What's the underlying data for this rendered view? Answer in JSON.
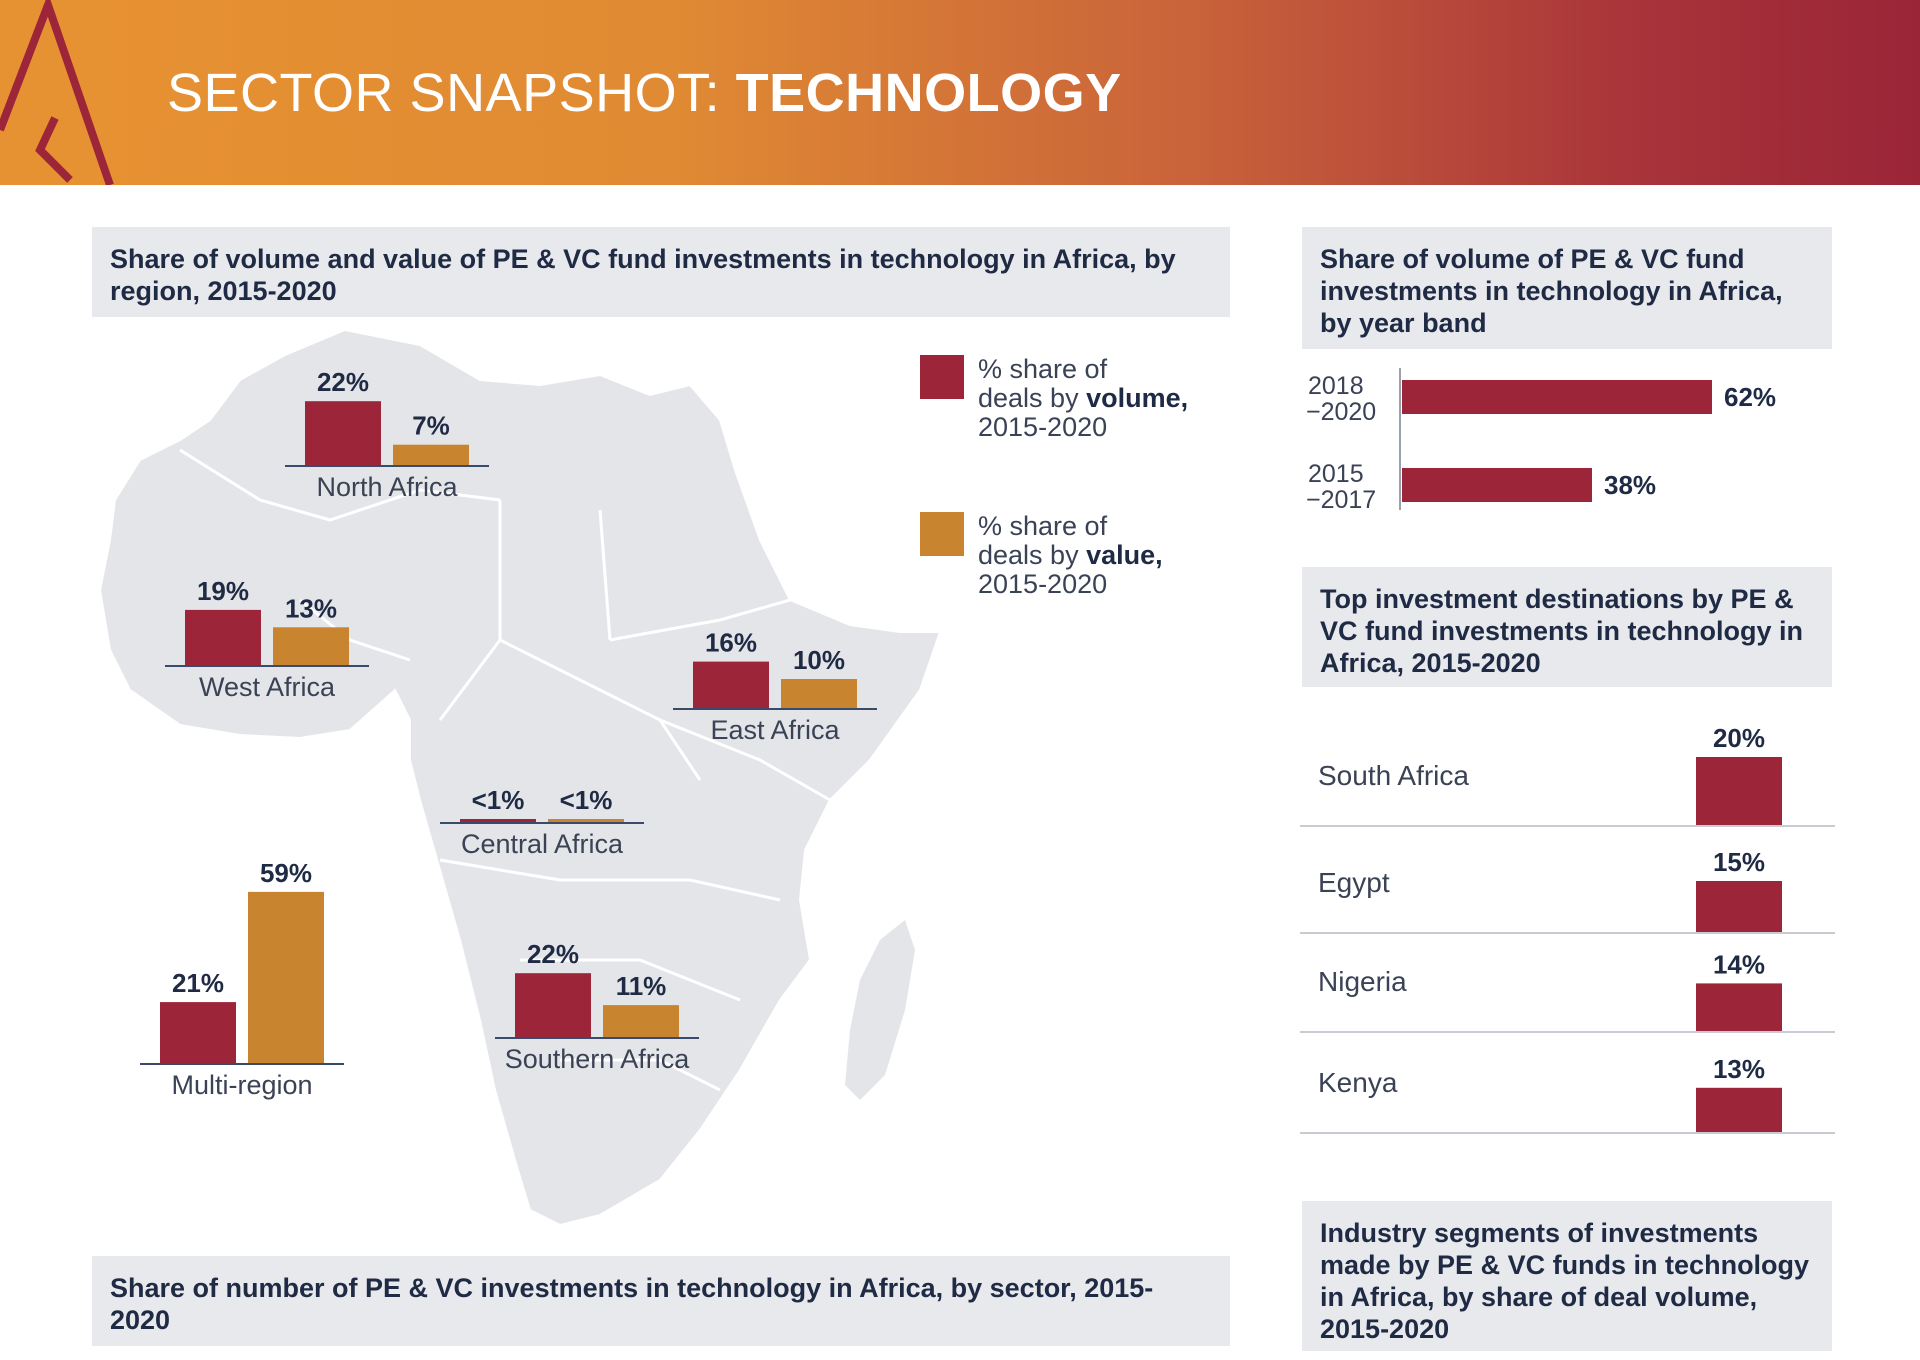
{
  "header": {
    "title_light": "SECTOR SNAPSHOT: ",
    "title_bold": "TECHNOLOGY"
  },
  "colors": {
    "volume": "#9c2539",
    "value": "#c9842f",
    "map": "#e4e5e8",
    "panel": "#e8e9ec"
  },
  "panels": {
    "region_title": "Share of volume and value of PE & VC fund investments in technology in Africa, by region, 2015-2020",
    "yearband_title": "Share of volume of  PE & VC fund investments  in technology  in Africa, by year band",
    "destinations_title": "Top investment destinations by PE & VC fund investments in technology in Africa, 2015-2020",
    "sector_title": "Share of number of PE & VC investments in technology in Africa, by sector, 2015-2020",
    "segments_title": "Industry segments of investments made by PE & VC funds in technology in Africa, by share of deal volume, 2015-2020"
  },
  "legend": {
    "volume": {
      "line1": "% share of",
      "line2_pre": "deals by ",
      "line2_bold": "volume,",
      "line3": "2015-2020"
    },
    "value": {
      "line1": "% share of",
      "line2_pre": "deals by ",
      "line2_bold": "value,",
      "line3": "2015-2020"
    }
  },
  "chart_data": [
    {
      "type": "bar",
      "title": "Share of volume and value of PE & VC fund investments in technology in Africa, by region, 2015-2020",
      "categories": [
        "North Africa",
        "West Africa",
        "East Africa",
        "Central Africa",
        "Southern Africa",
        "Multi-region"
      ],
      "series": [
        {
          "name": "% share of deals by volume, 2015-2020",
          "values": [
            22,
            19,
            16,
            0.5,
            22,
            21
          ],
          "labels": [
            "22%",
            "19%",
            "16%",
            "<1%",
            "22%",
            "21%"
          ]
        },
        {
          "name": "% share of deals by value, 2015-2020",
          "values": [
            7,
            13,
            10,
            0.5,
            11,
            59
          ],
          "labels": [
            "7%",
            "13%",
            "10%",
            "<1%",
            "11%",
            "59%"
          ]
        }
      ],
      "legend": "top-right",
      "grid": false
    },
    {
      "type": "bar",
      "title": "Share of volume of  PE & VC fund investments  in technology  in Africa, by year band",
      "orientation": "horizontal",
      "categories": [
        [
          "2018",
          "−2020"
        ],
        [
          "2015",
          "−2017"
        ]
      ],
      "values": [
        62,
        38
      ],
      "labels": [
        "62%",
        "38%"
      ],
      "grid": false
    },
    {
      "type": "bar",
      "title": "Top investment destinations by PE & VC fund investments in technology in Africa, 2015-2020",
      "categories": [
        "South Africa",
        "Egypt",
        "Nigeria",
        "Kenya"
      ],
      "values": [
        20,
        15,
        14,
        13
      ],
      "labels": [
        "20%",
        "15%",
        "14%",
        "13%"
      ],
      "grid": false
    }
  ]
}
